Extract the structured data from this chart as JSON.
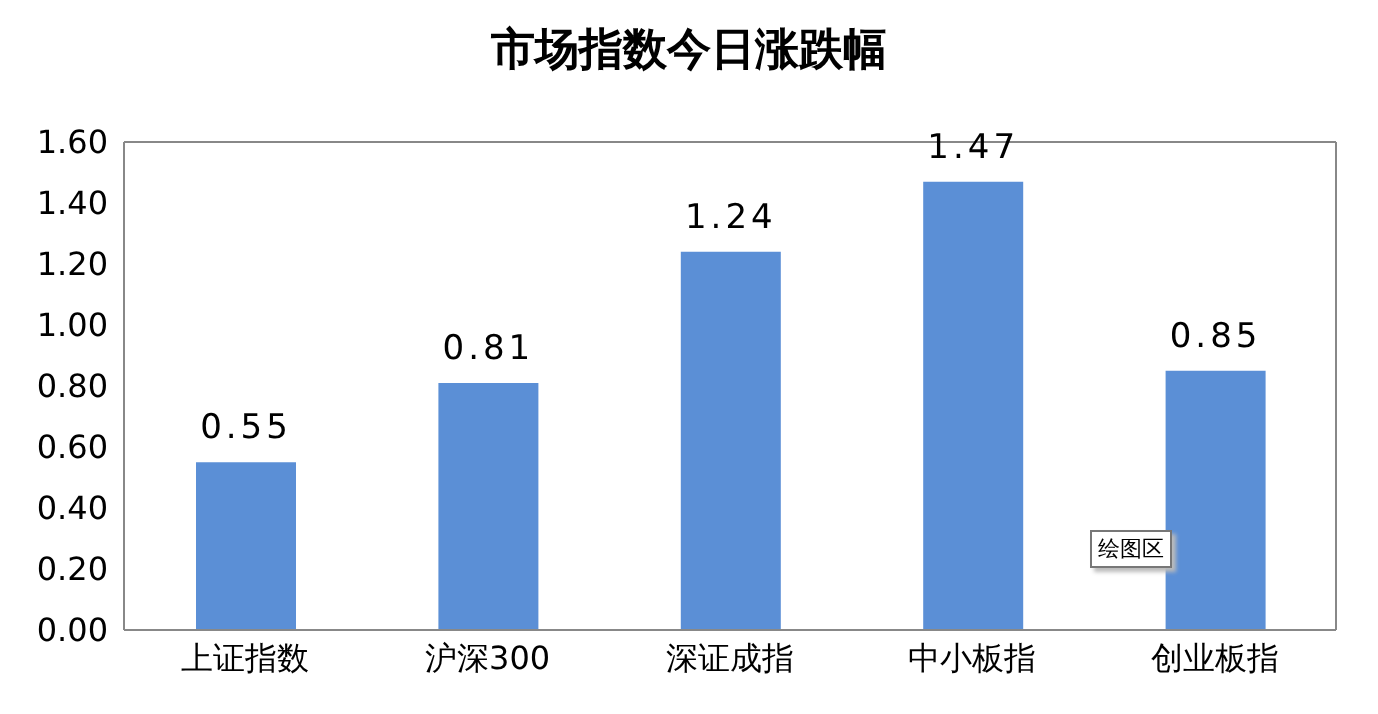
{
  "chart_data": {
    "type": "bar",
    "title": "市场指数今日涨跌幅",
    "categories": [
      "上证指数",
      "沪深300",
      "深证成指",
      "中小板指",
      "创业板指"
    ],
    "values": [
      0.55,
      0.81,
      1.24,
      1.47,
      0.85
    ],
    "color": "#5b8fd6",
    "ylim": [
      0,
      1.6
    ],
    "yticks": [
      {
        "value": 0,
        "label": "0.00"
      },
      {
        "value": 0.2,
        "label": "0.20"
      },
      {
        "value": 0.4,
        "label": "0.40"
      },
      {
        "value": 0.6,
        "label": "0.60"
      },
      {
        "value": 0.8,
        "label": "0.80"
      },
      {
        "value": 1,
        "label": "1.00"
      },
      {
        "value": 1.2,
        "label": "1.20"
      },
      {
        "value": 1.4,
        "label": "1.40"
      },
      {
        "value": 1.6,
        "label": "1.60"
      }
    ],
    "data_labels": true,
    "grid": false,
    "annotations": [
      "绘图区"
    ]
  }
}
